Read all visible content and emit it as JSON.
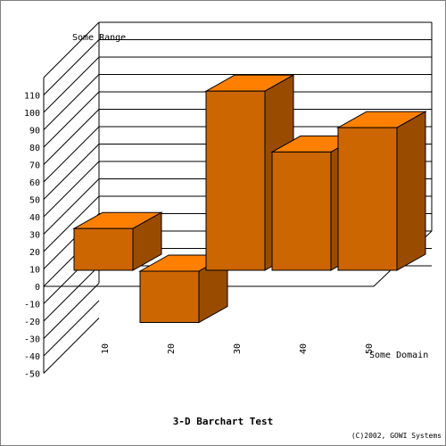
{
  "chart_data": {
    "type": "bar",
    "title": "3-D Barchart Test",
    "xlabel": "Some Domain",
    "ylabel": "Some Range",
    "categories": [
      "10",
      "20",
      "30",
      "40",
      "50"
    ],
    "values": [
      24,
      -30,
      103,
      68,
      82
    ],
    "ylim": [
      -50,
      110
    ],
    "yticks": [
      "-50",
      "-40",
      "-30",
      "-20",
      "-10",
      "0",
      "10",
      "20",
      "30",
      "40",
      "50",
      "60",
      "70",
      "80",
      "90",
      "100",
      "110"
    ],
    "grid": true,
    "colors": {
      "front": "#cc6600",
      "top": "#ff8000",
      "side": "#994c00"
    },
    "copyright": "(C)2002, GOWI Systems"
  }
}
